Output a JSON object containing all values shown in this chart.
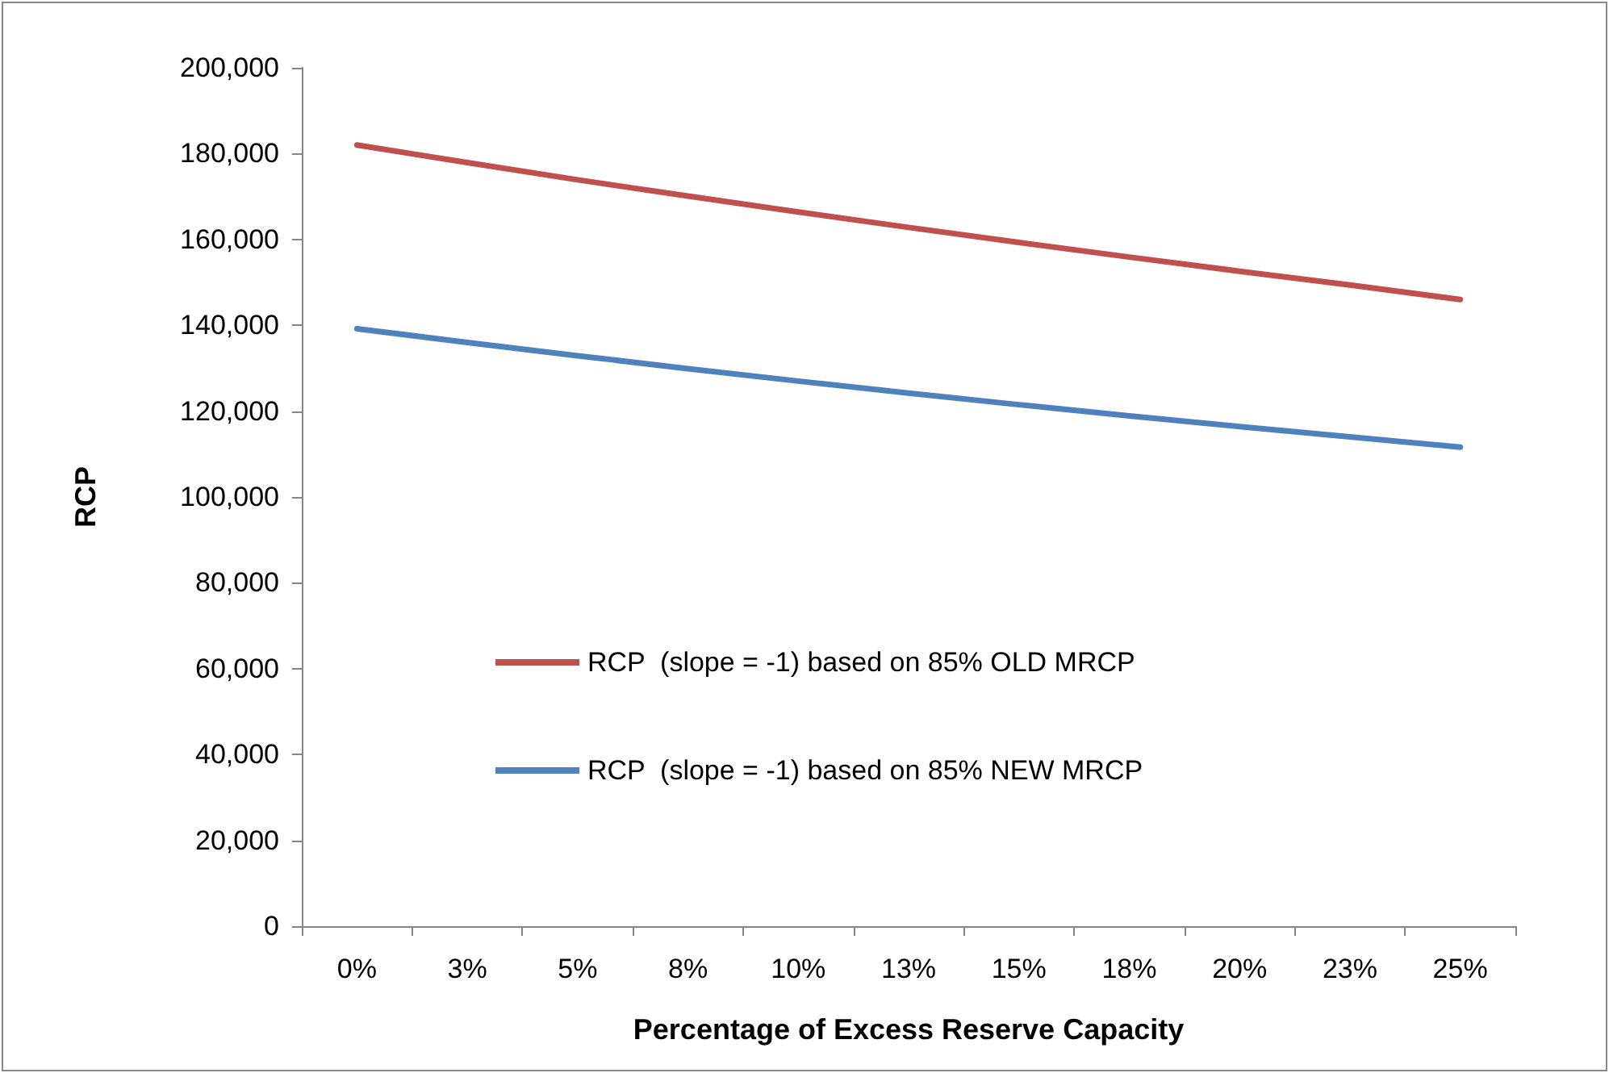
{
  "chart_data": {
    "type": "line",
    "xlabel": "Percentage of Excess Reserve Capacity",
    "ylabel": "RCP",
    "categories": [
      "0%",
      "3%",
      "5%",
      "8%",
      "10%",
      "13%",
      "15%",
      "18%",
      "20%",
      "23%",
      "25%"
    ],
    "series": [
      {
        "name": "RCP  (slope = -1) based on 85% OLD MRCP",
        "color": "#c0504d",
        "values": [
          182000,
          177900,
          173900,
          170100,
          166400,
          162800,
          159300,
          155900,
          152600,
          149400,
          146000
        ]
      },
      {
        "name": "RCP  (slope = -1) based on 85% NEW MRCP",
        "color": "#4f81bd",
        "values": [
          139200,
          136000,
          132900,
          129900,
          127000,
          124200,
          121500,
          118900,
          116400,
          114000,
          111600
        ]
      }
    ],
    "ylim": [
      0,
      200000
    ],
    "yticks": [
      0,
      {
        "value": 20000,
        "label": "20,000"
      },
      {
        "value": 40000,
        "label": "40,000"
      },
      {
        "value": 60000,
        "label": "60,000"
      },
      {
        "value": 80000,
        "label": "80,000"
      },
      {
        "value": 100000,
        "label": "100,000"
      },
      {
        "value": 120000,
        "label": "120,000"
      },
      {
        "value": 140000,
        "label": "140,000"
      },
      {
        "value": 160000,
        "label": "160,000"
      },
      {
        "value": 180000,
        "label": "180,000"
      },
      {
        "value": 200000,
        "label": "200,000"
      }
    ],
    "grid": false,
    "legend": "center left",
    "marker": "none",
    "line_style": "solid"
  }
}
